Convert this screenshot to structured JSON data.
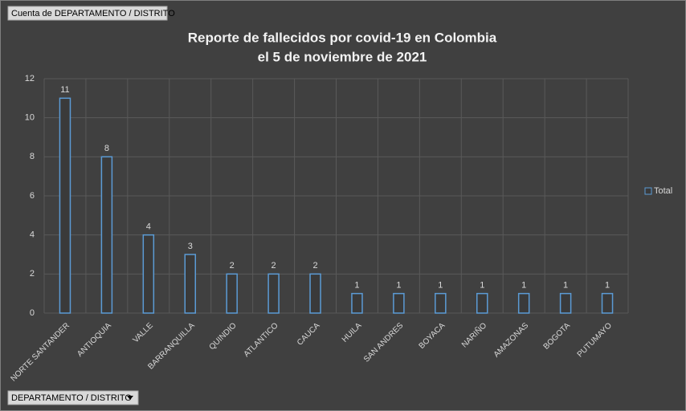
{
  "pivot_buttons": {
    "values_field": "Cuenta de DEPARTAMENTO / DISTRITO",
    "axis_field": "DEPARTAMENTO / DISTRITO"
  },
  "chart_data": {
    "type": "bar",
    "title": [
      "Reporte de fallecidos por covid-19 en Colombia",
      "el 5 de noviembre de 2021"
    ],
    "categories": [
      "NORTE SANTANDER",
      "ANTIOQUIA",
      "VALLE",
      "BARRANQUILLA",
      "QUINDIO",
      "ATLANTICO",
      "CAUCA",
      "HUILA",
      "SAN ANDRES",
      "BOYACA",
      "NARIÑO",
      "AMAZONAS",
      "BOGOTA",
      "PUTUMAYO"
    ],
    "series": [
      {
        "name": "Total",
        "color": "#5b9bd5",
        "values": [
          11,
          8,
          4,
          3,
          2,
          2,
          2,
          1,
          1,
          1,
          1,
          1,
          1,
          1
        ]
      }
    ],
    "ylim": [
      0,
      12
    ],
    "yticks": [
      0,
      2,
      4,
      6,
      8,
      10,
      12
    ],
    "grid": true,
    "legend": "right"
  }
}
